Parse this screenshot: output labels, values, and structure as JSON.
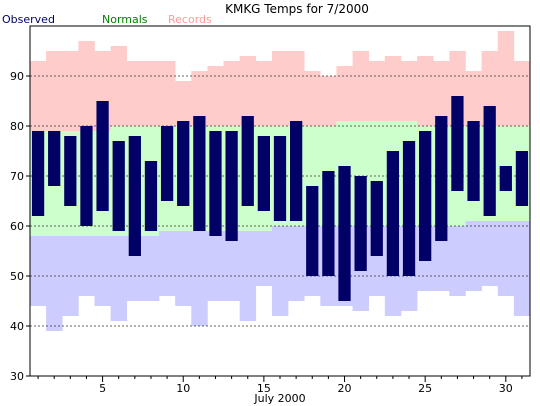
{
  "chart_data": {
    "type": "bar",
    "title": "KMKG Temps for 7/2000",
    "xlabel": "July 2000",
    "ylabel": "",
    "ylim": [
      30,
      100
    ],
    "xlim": [
      0.5,
      31.5
    ],
    "grid": true,
    "y_ticks": [
      30,
      40,
      50,
      60,
      70,
      80,
      90
    ],
    "x_ticks": [
      5,
      10,
      15,
      20,
      25,
      30
    ],
    "legend": [
      {
        "label": "Observed",
        "color": "#000066"
      },
      {
        "label": "Normals",
        "color": "#008000"
      },
      {
        "label": "Records",
        "color": "#ff9999"
      }
    ],
    "days": [
      1,
      2,
      3,
      4,
      5,
      6,
      7,
      8,
      9,
      10,
      11,
      12,
      13,
      14,
      15,
      16,
      17,
      18,
      19,
      20,
      21,
      22,
      23,
      24,
      25,
      26,
      27,
      28,
      29,
      30,
      31
    ],
    "series": [
      {
        "name": "Observed",
        "high": [
          79,
          79,
          78,
          80,
          85,
          77,
          78,
          73,
          80,
          81,
          82,
          79,
          79,
          82,
          78,
          78,
          81,
          68,
          71,
          72,
          70,
          69,
          75,
          77,
          79,
          82,
          86,
          81,
          84,
          72,
          75
        ],
        "low": [
          62,
          68,
          64,
          60,
          63,
          59,
          54,
          59,
          65,
          64,
          59,
          58,
          57,
          64,
          63,
          61,
          61,
          50,
          50,
          45,
          51,
          54,
          50,
          50,
          53,
          57,
          67,
          65,
          62,
          67,
          64
        ]
      },
      {
        "name": "Normals",
        "high": [
          79,
          79,
          79,
          79,
          79,
          80,
          80,
          80,
          80,
          80,
          80,
          80,
          80,
          80,
          80,
          80,
          80,
          80,
          80,
          81,
          81,
          81,
          81,
          81,
          80,
          80,
          80,
          80,
          80,
          80,
          80
        ],
        "low": [
          58,
          58,
          58,
          58,
          58,
          58,
          58,
          58,
          59,
          59,
          59,
          59,
          59,
          59,
          59,
          60,
          60,
          60,
          60,
          60,
          60,
          60,
          60,
          60,
          60,
          60,
          60,
          61,
          61,
          61,
          61
        ]
      },
      {
        "name": "Records",
        "high": [
          93,
          95,
          95,
          97,
          95,
          96,
          93,
          93,
          93,
          89,
          91,
          92,
          93,
          94,
          93,
          95,
          95,
          91,
          90,
          92,
          95,
          93,
          94,
          93,
          94,
          93,
          95,
          91,
          95,
          99,
          93
        ],
        "low": [
          44,
          39,
          42,
          46,
          44,
          41,
          45,
          45,
          46,
          44,
          40,
          45,
          45,
          41,
          48,
          42,
          45,
          46,
          44,
          44,
          43,
          46,
          42,
          43,
          47,
          47,
          46,
          47,
          48,
          46,
          42
        ]
      }
    ]
  },
  "colors": {
    "record_band": "#ffcccc",
    "normal_band": "#ccffcc",
    "cool_band": "#ccccff",
    "observed_bar": "#000066",
    "grid": "#333333",
    "axis": "#000000",
    "background": "#ffffff"
  }
}
